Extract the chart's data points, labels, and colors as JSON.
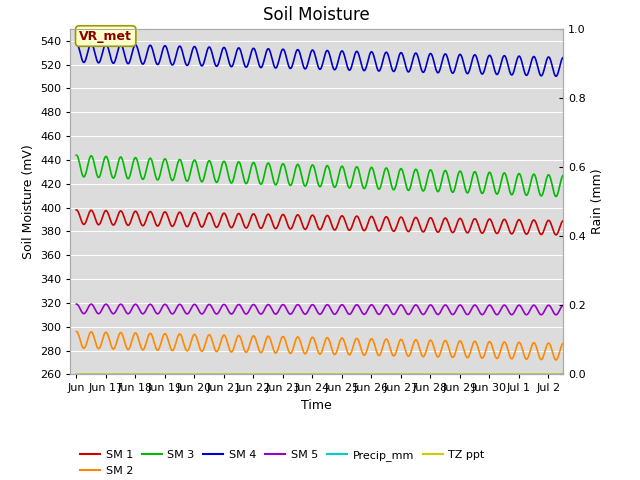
{
  "title": "Soil Moisture",
  "xlabel": "Time",
  "ylabel_left": "Soil Moisture (mV)",
  "ylabel_right": "Rain (mm)",
  "ylim_left": [
    260,
    550
  ],
  "ylim_right": [
    0.0,
    1.0
  ],
  "yticks_left": [
    260,
    280,
    300,
    320,
    340,
    360,
    380,
    400,
    420,
    440,
    460,
    480,
    500,
    520,
    540
  ],
  "yticks_right": [
    0.0,
    0.2,
    0.4,
    0.6,
    0.8,
    1.0
  ],
  "xtick_labels": [
    "Jun",
    "Jun 17",
    "Jun 18",
    "Jun 19",
    "Jun 20",
    "Jun 21",
    "Jun 22",
    "Jun 23",
    "Jun 24",
    "Jun 25",
    "Jun 26",
    "Jun 27",
    "Jun 28",
    "Jun 29",
    "Jun 30",
    "Jul 1",
    "Jul 2"
  ],
  "n_points": 2000,
  "series": [
    {
      "name": "SM 1",
      "color": "#cc0000",
      "mean": 392,
      "amplitude": 6,
      "trend": -9,
      "cycles_per_day": 2.0,
      "phase": 1.5,
      "lw": 1.2
    },
    {
      "name": "SM 2",
      "color": "#ff8800",
      "mean": 289,
      "amplitude": 7,
      "trend": -10,
      "cycles_per_day": 2.0,
      "phase": 1.5,
      "lw": 1.2
    },
    {
      "name": "SM 3",
      "color": "#00bb00",
      "mean": 435,
      "amplitude": 9,
      "trend": -17,
      "cycles_per_day": 2.0,
      "phase": 1.5,
      "lw": 1.2
    },
    {
      "name": "SM 4",
      "color": "#0000cc",
      "mean": 530,
      "amplitude": 8,
      "trend": -12,
      "cycles_per_day": 2.0,
      "phase": 1.5,
      "lw": 1.2
    },
    {
      "name": "SM 5",
      "color": "#9900cc",
      "mean": 315,
      "amplitude": 4,
      "trend": -1,
      "cycles_per_day": 2.0,
      "phase": 1.5,
      "lw": 1.2
    },
    {
      "name": "Precip_mm",
      "color": "#00cccc",
      "mean": 260,
      "amplitude": 0,
      "trend": 0,
      "cycles_per_day": 0,
      "phase": 0,
      "lw": 1.0
    },
    {
      "name": "TZ ppt",
      "color": "#cccc00",
      "mean": 260,
      "amplitude": 0,
      "trend": 0,
      "cycles_per_day": 0,
      "phase": 0,
      "lw": 1.5
    }
  ],
  "annotation_text": "VR_met",
  "bg_color": "#dcdcdc",
  "grid_color": "#ffffff",
  "title_fontsize": 12,
  "label_fontsize": 9,
  "tick_fontsize": 8,
  "legend_fontsize": 8
}
